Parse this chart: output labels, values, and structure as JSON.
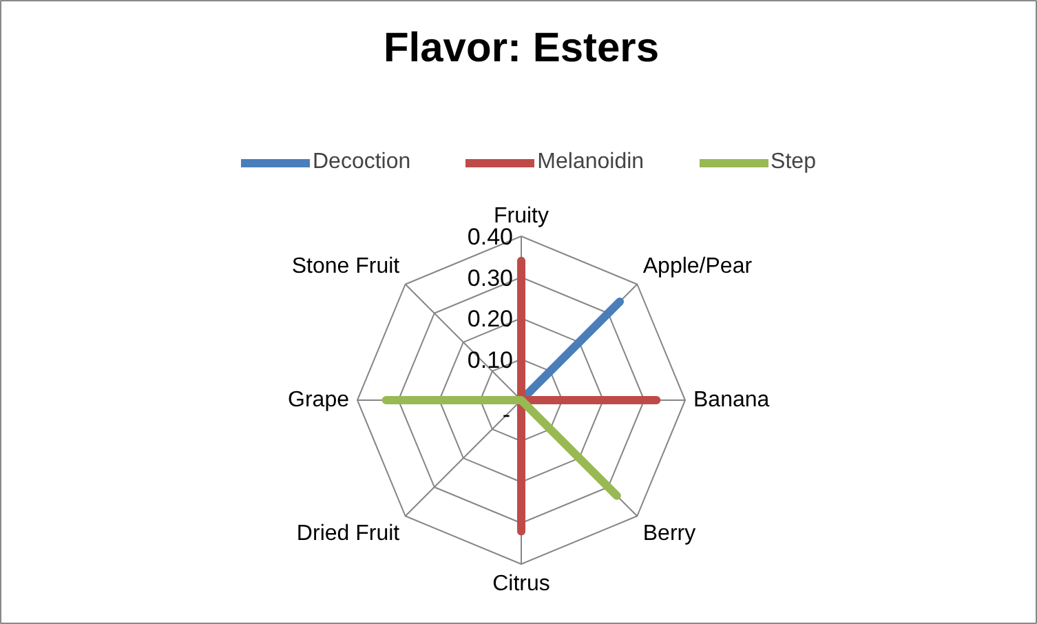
{
  "chart_data": {
    "type": "radar",
    "title": "Flavor: Esters",
    "categories": [
      "Fruity",
      "Apple/Pear",
      "Banana",
      "Berry",
      "Citrus",
      "Dried Fruit",
      "Grape",
      "Stone Fruit"
    ],
    "series": [
      {
        "name": "Decoction",
        "color": "#4a7ebb",
        "values": [
          0,
          0.34,
          0,
          0,
          0,
          0,
          0,
          0
        ]
      },
      {
        "name": "Melanoidin",
        "color": "#be4b48",
        "values": [
          0.34,
          0,
          0.33,
          0,
          0.32,
          0,
          0,
          0
        ]
      },
      {
        "name": "Step",
        "color": "#98b954",
        "values": [
          0,
          0,
          0,
          0.33,
          0,
          0,
          0.33,
          0
        ]
      }
    ],
    "ylim": [
      0,
      0.4
    ],
    "yticks": [
      {
        "value": 0,
        "label": "-"
      },
      {
        "value": 0.1,
        "label": "0.10"
      },
      {
        "value": 0.2,
        "label": "0.20"
      },
      {
        "value": 0.3,
        "label": "0.30"
      },
      {
        "value": 0.4,
        "label": "0.40"
      }
    ],
    "legend": "top",
    "line_style": "solid",
    "marker": "none"
  }
}
